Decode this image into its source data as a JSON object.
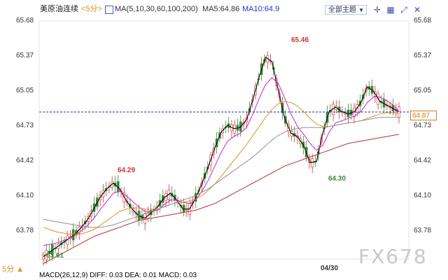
{
  "toolbar": {
    "symbol": "美原油连续",
    "period": "<5分>",
    "ma_settings": "MA(5,10,30,60,100,200)",
    "ma5": "MA5:64.86",
    "ma10": "MA10:64.9",
    "theme_label": "全部主题",
    "icons": [
      "crosshair-icon",
      "grid-icon",
      "expand-icon",
      "close-icon"
    ]
  },
  "price_axis_left": [
    "65.68",
    "65.37",
    "65.05",
    "64.73",
    "64.42",
    "64.10",
    "63.78"
  ],
  "price_axis_right": [
    "65.68",
    "65.37",
    "65.05",
    "64.73",
    "64.42",
    "64.10",
    "63.78"
  ],
  "current_price": "64.87",
  "annotations": {
    "high_left": "64.29",
    "high_peak": "65.46",
    "low_mid": "64.30",
    "low_start": "63.61"
  },
  "bottom_period": "5分 ▲",
  "date_label": "04/30",
  "macd_text": "MACD(26,12,9) DIFF: 0.03  DEA: 0.01  MACD: 0.03",
  "watermark": "FX678",
  "colors": {
    "ma5": "#111111",
    "ma10": "#d020d0",
    "ma30": "#e09020",
    "ma60": "#909090",
    "ma100": "#c03030",
    "candle_up": "#cc3333",
    "candle_down": "#3a8a3a",
    "current_line": "#2233aa"
  },
  "chart_data": {
    "type": "line",
    "title": "美原油连续",
    "ylim": [
      63.6,
      65.7
    ],
    "current": 64.87,
    "series": [
      {
        "name": "MA5",
        "values": [
          63.62,
          63.66,
          63.7,
          63.74,
          63.78,
          63.82,
          63.88,
          63.95,
          64.05,
          64.15,
          64.22,
          64.27,
          64.22,
          64.12,
          64.04,
          63.98,
          63.96,
          64.01,
          64.06,
          64.14,
          64.18,
          64.12,
          64.04,
          64.04,
          64.14,
          64.27,
          64.42,
          64.58,
          64.72,
          64.78,
          64.75,
          64.76,
          64.83,
          65.01,
          65.21,
          65.38,
          65.34,
          65.09,
          64.84,
          64.71,
          64.68,
          64.6,
          64.45,
          64.46,
          64.71,
          64.9,
          64.94,
          64.9,
          64.88,
          64.9,
          64.98,
          65.12,
          65.08,
          64.99,
          64.96,
          64.93,
          64.9
        ]
      },
      {
        "name": "MA10",
        "values": [
          63.72,
          63.73,
          63.74,
          63.76,
          63.78,
          63.81,
          63.85,
          63.9,
          63.96,
          64.04,
          64.11,
          64.18,
          64.2,
          64.16,
          64.11,
          64.06,
          64.02,
          64.02,
          64.03,
          64.08,
          64.12,
          64.12,
          64.1,
          64.09,
          64.12,
          64.2,
          64.3,
          64.42,
          64.54,
          64.64,
          64.68,
          64.71,
          64.76,
          64.88,
          65.02,
          65.14,
          65.2,
          65.15,
          65.02,
          64.88,
          64.77,
          64.7,
          64.62,
          64.56,
          64.6,
          64.72,
          64.8,
          64.82,
          64.84,
          64.86,
          64.9,
          64.98,
          65.03,
          65.03,
          65.0,
          64.96,
          64.9
        ]
      },
      {
        "name": "MA30",
        "values": [
          63.88,
          63.86,
          63.84,
          63.83,
          63.82,
          63.82,
          63.82,
          63.84,
          63.86,
          63.9,
          63.94,
          63.98,
          64.02,
          64.04,
          64.05,
          64.05,
          64.04,
          64.04,
          64.04,
          64.06,
          64.08,
          64.1,
          64.1,
          64.11,
          64.13,
          64.16,
          64.21,
          64.26,
          64.33,
          64.4,
          64.47,
          64.54,
          64.61,
          64.69,
          64.77,
          64.85,
          64.92,
          64.97,
          64.99,
          64.98,
          64.95,
          64.9,
          64.84,
          64.79,
          64.77,
          64.77,
          64.78,
          64.79,
          64.8,
          64.81,
          64.82,
          64.84,
          64.86,
          64.88,
          64.89,
          64.89,
          64.88
        ]
      },
      {
        "name": "MA60",
        "values": [
          63.95,
          63.94,
          63.93,
          63.92,
          63.91,
          63.9,
          63.89,
          63.88,
          63.88,
          63.88,
          63.89,
          63.9,
          63.92,
          63.94,
          63.96,
          63.98,
          64.0,
          64.02,
          64.04,
          64.06,
          64.08,
          64.1,
          64.12,
          64.14,
          64.16,
          64.19,
          64.22,
          64.26,
          64.3,
          64.34,
          64.38,
          64.42,
          64.46,
          64.5,
          64.55,
          64.6,
          64.65,
          64.69,
          64.72,
          64.74,
          64.75,
          64.76,
          64.76,
          64.76,
          64.76,
          64.77,
          64.78,
          64.79,
          64.8,
          64.81,
          64.82,
          64.83,
          64.84,
          64.85,
          64.85,
          64.85,
          64.85
        ]
      },
      {
        "name": "MA100",
        "values": [
          63.56,
          63.59,
          63.62,
          63.65,
          63.68,
          63.71,
          63.74,
          63.77,
          63.8,
          63.82,
          63.84,
          63.86,
          63.88,
          63.9,
          63.92,
          63.94,
          63.95,
          63.96,
          63.97,
          63.98,
          63.99,
          64.0,
          64.01,
          64.02,
          64.03,
          64.05,
          64.07,
          64.09,
          64.12,
          64.15,
          64.18,
          64.21,
          64.24,
          64.27,
          64.3,
          64.33,
          64.36,
          64.39,
          64.42,
          64.44,
          64.46,
          64.48,
          64.5,
          64.52,
          64.54,
          64.56,
          64.58,
          64.6,
          64.62,
          64.63,
          64.64,
          64.65,
          64.66,
          64.67,
          64.68,
          64.69,
          64.7
        ]
      }
    ]
  }
}
